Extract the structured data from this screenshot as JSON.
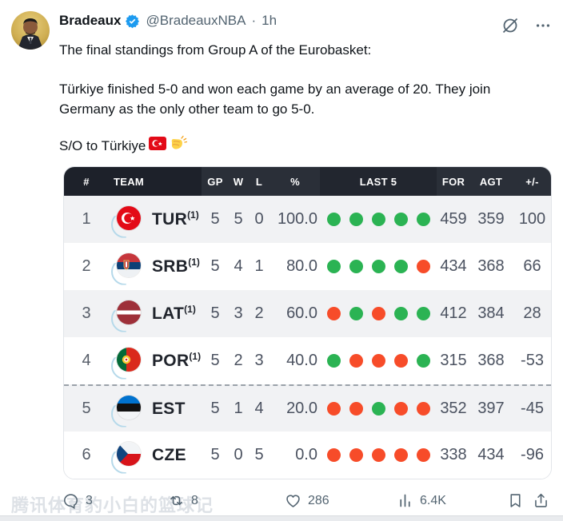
{
  "tweet": {
    "author": "Bradeaux",
    "handle": "@BradeauxNBA",
    "separator": "·",
    "timestamp": "1h",
    "line1": "The final standings from Group A of the Eurobasket:",
    "line2a": "Türkiye finished 5-0 and won each game by an average of 20. They join",
    "line2b": "Germany as the only other team to go 5-0.",
    "line3": "S/O to Türkiye",
    "emojis": [
      "turkey-flag",
      "clapping-hands"
    ]
  },
  "standings": {
    "headers": {
      "rank": "#",
      "team": "TEAM",
      "gp": "GP",
      "w": "W",
      "l": "L",
      "pct": "%",
      "last5": "LAST 5",
      "for": "FOR",
      "agt": "AGT",
      "pm": "+/-"
    },
    "rows": [
      {
        "rank": "1",
        "code": "TUR",
        "sup": "(1)",
        "flag": "turkey",
        "gp": "5",
        "w": "5",
        "l": "0",
        "pct": "100.0",
        "last5": [
          "W",
          "W",
          "W",
          "W",
          "W"
        ],
        "for": "459",
        "agt": "359",
        "pm": "100"
      },
      {
        "rank": "2",
        "code": "SRB",
        "sup": "(1)",
        "flag": "serbia",
        "gp": "5",
        "w": "4",
        "l": "1",
        "pct": "80.0",
        "last5": [
          "W",
          "W",
          "W",
          "W",
          "L"
        ],
        "for": "434",
        "agt": "368",
        "pm": "66"
      },
      {
        "rank": "3",
        "code": "LAT",
        "sup": "(1)",
        "flag": "latvia",
        "gp": "5",
        "w": "3",
        "l": "2",
        "pct": "60.0",
        "last5": [
          "L",
          "W",
          "L",
          "W",
          "W"
        ],
        "for": "412",
        "agt": "384",
        "pm": "28"
      },
      {
        "rank": "4",
        "code": "POR",
        "sup": "(1)",
        "flag": "portugal",
        "gp": "5",
        "w": "2",
        "l": "3",
        "pct": "40.0",
        "last5": [
          "W",
          "L",
          "L",
          "L",
          "W"
        ],
        "for": "315",
        "agt": "368",
        "pm": "-53"
      },
      {
        "rank": "5",
        "code": "EST",
        "sup": "",
        "flag": "estonia",
        "gp": "5",
        "w": "1",
        "l": "4",
        "pct": "20.0",
        "last5": [
          "L",
          "L",
          "W",
          "L",
          "L"
        ],
        "for": "352",
        "agt": "397",
        "pm": "-45"
      },
      {
        "rank": "6",
        "code": "CZE",
        "sup": "",
        "flag": "czechia",
        "gp": "5",
        "w": "0",
        "l": "5",
        "pct": "0.0",
        "last5": [
          "L",
          "L",
          "L",
          "L",
          "L"
        ],
        "for": "338",
        "agt": "434",
        "pm": "-96"
      }
    ],
    "cutoff_before_row_index": 4,
    "colors": {
      "win_dot": "#2bb353",
      "loss_dot": "#f74c29",
      "header_dark": "#1d212a",
      "header_light": "#2a2f38",
      "row_alt": "#f1f2f4",
      "verified_blue": "#1d9bf0"
    }
  },
  "actions": {
    "reply_count": "3",
    "repost_count": "8",
    "like_count": "286",
    "view_count": "6.4K"
  },
  "watermark": "腾讯体育豹小白的篮球记"
}
